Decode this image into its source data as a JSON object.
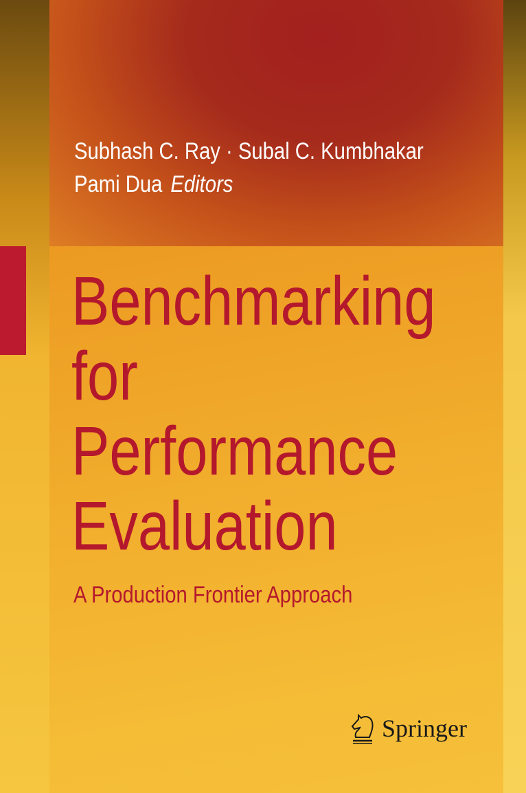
{
  "cover": {
    "authors_line1": "Subhash C. Ray · Subal C. Kumbhakar",
    "authors_line2": "Pami Dua",
    "editors_label": "Editors",
    "title_lines": [
      "Benchmarking",
      "for",
      "Performance",
      "Evaluation"
    ],
    "subtitle": "A Production Frontier Approach",
    "publisher": "Springer",
    "publisher_icon": "springer-horse-icon",
    "colors": {
      "title": "#b4182c",
      "accent_bar": "#bc1a2e",
      "top_panel": "#a3201e",
      "background": "#f2b52a"
    }
  }
}
